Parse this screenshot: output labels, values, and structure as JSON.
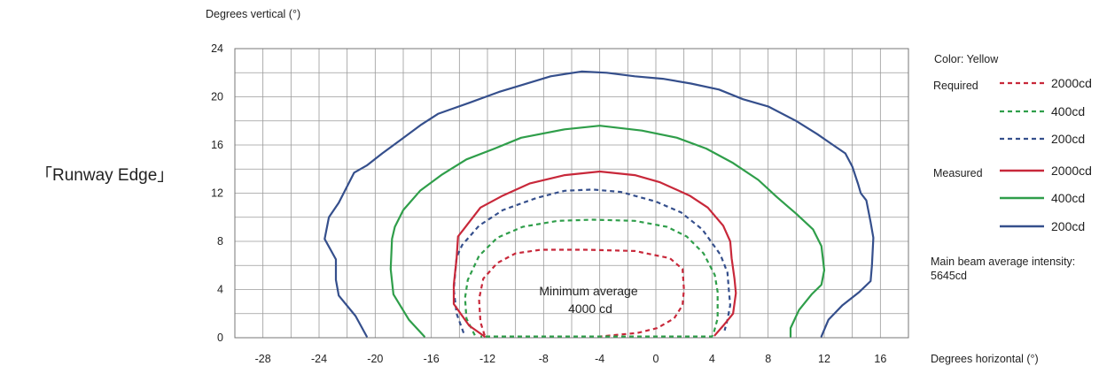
{
  "side_label": "「Runway Edge」",
  "chart_data": {
    "type": "line",
    "title": "",
    "xlabel": "Degrees horizontal (°)",
    "ylabel": "Degrees vertical (°)",
    "xlim": [
      -30,
      18
    ],
    "ylim": [
      0,
      24
    ],
    "xticks": [
      -28,
      -24,
      -20,
      -16,
      -12,
      -8,
      -4,
      0,
      4,
      8,
      12,
      16
    ],
    "yticks": [
      0,
      4,
      8,
      12,
      16,
      20,
      24
    ],
    "x_ticklabels": [
      "-28",
      "-24",
      "-20",
      "-16",
      "-12",
      "-8",
      "-4",
      "0",
      "4",
      "8",
      "12",
      "16"
    ],
    "y_ticklabels": [
      "0",
      "4",
      "8",
      "12",
      "16",
      "20",
      "24"
    ],
    "grid": true,
    "annotation": {
      "lines": [
        "Minimum average",
        "4000 cd"
      ],
      "x": -4,
      "y": 4
    },
    "series": [
      {
        "name": "2000cd",
        "group": "Required",
        "style": "dashed",
        "color": "#c8283a",
        "points": [
          [
            -12.2,
            0.2
          ],
          [
            -12.5,
            1.3
          ],
          [
            -12.6,
            3.2
          ],
          [
            -12.3,
            4.9
          ],
          [
            -11.3,
            6.2
          ],
          [
            -10,
            7
          ],
          [
            -8.2,
            7.3
          ],
          [
            -5,
            7.3
          ],
          [
            -1.5,
            7.2
          ],
          [
            1,
            6.6
          ],
          [
            1.9,
            5.7
          ],
          [
            2,
            4
          ],
          [
            1.9,
            2.7
          ],
          [
            1.3,
            1.6
          ],
          [
            0.1,
            0.8
          ],
          [
            -1.3,
            0.4
          ],
          [
            -4,
            0.1
          ]
        ]
      },
      {
        "name": "400cd",
        "group": "Required",
        "style": "dashed",
        "color": "#2f9e4a",
        "points": [
          [
            -12.9,
            0.2
          ],
          [
            -13.5,
            1.6
          ],
          [
            -13.6,
            3.3
          ],
          [
            -13.4,
            4.8
          ],
          [
            -12.6,
            6.8
          ],
          [
            -11.3,
            8.3
          ],
          [
            -9.5,
            9.2
          ],
          [
            -7,
            9.7
          ],
          [
            -4.5,
            9.8
          ],
          [
            -1.5,
            9.7
          ],
          [
            0.8,
            9.2
          ],
          [
            2.2,
            8.4
          ],
          [
            3.4,
            7
          ],
          [
            4.2,
            5.2
          ],
          [
            4.4,
            3.8
          ],
          [
            4.4,
            1.6
          ],
          [
            4.1,
            0.3
          ],
          [
            4,
            0.1
          ],
          [
            -12.5,
            0.1
          ]
        ]
      },
      {
        "name": "200cd",
        "group": "Required",
        "style": "dashed",
        "color": "#354f8c",
        "points": [
          [
            -13.7,
            0.4
          ],
          [
            -14.2,
            2
          ],
          [
            -14.4,
            4
          ],
          [
            -14.2,
            6.7
          ],
          [
            -13.8,
            7.7
          ],
          [
            -12.6,
            9.3
          ],
          [
            -10.9,
            10.6
          ],
          [
            -8.5,
            11.6
          ],
          [
            -6.5,
            12.2
          ],
          [
            -4.5,
            12.3
          ],
          [
            -2.5,
            12.1
          ],
          [
            0,
            11.3
          ],
          [
            1.8,
            10.4
          ],
          [
            3.3,
            9
          ],
          [
            4.6,
            6.9
          ],
          [
            5.1,
            5.4
          ],
          [
            5.2,
            4
          ],
          [
            5.3,
            2.7
          ],
          [
            5.1,
            1.5
          ],
          [
            4.9,
            0.6
          ]
        ]
      },
      {
        "name": "2000cd",
        "group": "Measured",
        "style": "solid",
        "color": "#c8283a",
        "points": [
          [
            -12.2,
            0.1
          ],
          [
            -13.3,
            1
          ],
          [
            -14.4,
            2.8
          ],
          [
            -14.4,
            4.4
          ],
          [
            -14.2,
            6.6
          ],
          [
            -14.1,
            8.4
          ],
          [
            -13.7,
            9
          ],
          [
            -12.5,
            10.8
          ],
          [
            -10.9,
            11.8
          ],
          [
            -9,
            12.8
          ],
          [
            -6.5,
            13.5
          ],
          [
            -4,
            13.8
          ],
          [
            -1.5,
            13.5
          ],
          [
            0.3,
            12.9
          ],
          [
            2.4,
            11.8
          ],
          [
            3.7,
            10.8
          ],
          [
            4.8,
            9.3
          ],
          [
            5.3,
            8
          ],
          [
            5.4,
            6.6
          ],
          [
            5.6,
            4.9
          ],
          [
            5.7,
            3.7
          ],
          [
            5.5,
            2
          ],
          [
            4.8,
            1
          ],
          [
            4.2,
            0.2
          ]
        ]
      },
      {
        "name": "400cd",
        "group": "Measured",
        "style": "solid",
        "color": "#2f9e4a",
        "points": [
          [
            -16.5,
            0.1
          ],
          [
            -17.6,
            1.5
          ],
          [
            -18.7,
            3.6
          ],
          [
            -18.9,
            5.7
          ],
          [
            -18.8,
            8.2
          ],
          [
            -18.6,
            9.2
          ],
          [
            -18,
            10.6
          ],
          [
            -16.8,
            12.2
          ],
          [
            -15.3,
            13.5
          ],
          [
            -13.5,
            14.8
          ],
          [
            -11.5,
            15.7
          ],
          [
            -9.6,
            16.6
          ],
          [
            -6.5,
            17.3
          ],
          [
            -4,
            17.6
          ],
          [
            -1,
            17.2
          ],
          [
            1.5,
            16.6
          ],
          [
            3.6,
            15.7
          ],
          [
            5.5,
            14.5
          ],
          [
            7.3,
            13.1
          ],
          [
            8.6,
            11.7
          ],
          [
            10,
            10.3
          ],
          [
            11.2,
            9
          ],
          [
            11.8,
            7.6
          ],
          [
            12,
            5.6
          ],
          [
            11.8,
            4.4
          ],
          [
            11.1,
            3.6
          ],
          [
            10.2,
            2.3
          ],
          [
            9.6,
            0.8
          ],
          [
            9.6,
            0.1
          ]
        ]
      },
      {
        "name": "200cd",
        "group": "Measured",
        "style": "solid",
        "color": "#354f8c",
        "points": [
          [
            -20.6,
            0.1
          ],
          [
            -21.4,
            1.8
          ],
          [
            -22.6,
            3.5
          ],
          [
            -22.8,
            4.8
          ],
          [
            -22.8,
            6.5
          ],
          [
            -23.6,
            8.2
          ],
          [
            -23.3,
            10
          ],
          [
            -22.6,
            11.2
          ],
          [
            -21.5,
            13.7
          ],
          [
            -20.6,
            14.3
          ],
          [
            -19.5,
            15.3
          ],
          [
            -18.1,
            16.5
          ],
          [
            -16.7,
            17.7
          ],
          [
            -15.5,
            18.6
          ],
          [
            -13.3,
            19.5
          ],
          [
            -11.2,
            20.4
          ],
          [
            -9.5,
            21
          ],
          [
            -7.5,
            21.7
          ],
          [
            -5.3,
            22.1
          ],
          [
            -3.5,
            22
          ],
          [
            -1.5,
            21.7
          ],
          [
            0.5,
            21.5
          ],
          [
            2.5,
            21.1
          ],
          [
            4.5,
            20.6
          ],
          [
            6.2,
            19.8
          ],
          [
            8,
            19.2
          ],
          [
            10,
            18
          ],
          [
            11.5,
            16.9
          ],
          [
            12.5,
            16.1
          ],
          [
            13.5,
            15.3
          ],
          [
            14,
            14.2
          ],
          [
            14.4,
            12.8
          ],
          [
            14.6,
            12
          ],
          [
            15,
            11.4
          ],
          [
            15.3,
            9.6
          ],
          [
            15.5,
            8.3
          ],
          [
            15.4,
            6
          ],
          [
            15.3,
            4.7
          ],
          [
            14.5,
            3.8
          ],
          [
            13.3,
            2.7
          ],
          [
            12.3,
            1.5
          ],
          [
            11.8,
            0.1
          ]
        ]
      }
    ]
  },
  "legend": {
    "color_line": "Color: Yellow",
    "required_label": "Required",
    "measured_label": "Measured",
    "required_items": [
      "2000cd",
      "400cd",
      "200cd"
    ],
    "measured_items": [
      "2000cd",
      "400cd",
      "200cd"
    ],
    "colors": [
      "#c8283a",
      "#2f9e4a",
      "#354f8c"
    ],
    "main_beam_label": "Main beam average intensity:",
    "main_beam_value": "5645cd"
  }
}
